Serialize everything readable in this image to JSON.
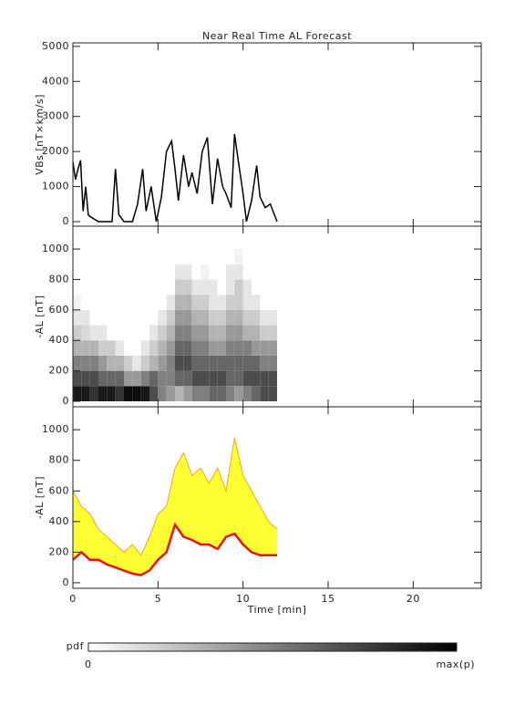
{
  "chart_data": [
    {
      "type": "line",
      "title": "Near Real Time AL Forecast",
      "ylabel": "VBs [nT×km/s]",
      "x": [
        0,
        0.15,
        0.3,
        0.45,
        0.6,
        0.75,
        0.9,
        1.0,
        1.5,
        2.0,
        2.3,
        2.5,
        2.7,
        3.0,
        3.5,
        3.8,
        4.1,
        4.3,
        4.6,
        4.9,
        5.2,
        5.5,
        5.8,
        6.0,
        6.2,
        6.5,
        6.8,
        7.0,
        7.3,
        7.6,
        7.9,
        8.2,
        8.5,
        8.8,
        9.0,
        9.3,
        9.5,
        9.7,
        10.0,
        10.2,
        10.5,
        10.8,
        11.0,
        11.3,
        11.6,
        12.0
      ],
      "values": [
        1700,
        1200,
        1500,
        1750,
        300,
        1000,
        200,
        150,
        0,
        0,
        0,
        1500,
        200,
        0,
        0,
        500,
        1500,
        300,
        1000,
        0,
        700,
        2000,
        2300,
        1500,
        600,
        1900,
        1000,
        1400,
        800,
        2000,
        2400,
        500,
        1800,
        1000,
        800,
        400,
        2500,
        1800,
        800,
        0,
        600,
        1600,
        700,
        400,
        500,
        0
      ],
      "color": "#000000",
      "xlim": [
        0,
        24
      ],
      "xticks": [
        0,
        5,
        10,
        15,
        20
      ],
      "xtick_labels": false,
      "ylim": [
        -130,
        5100
      ],
      "yticks": [
        0,
        1000,
        2000,
        3000,
        4000,
        5000
      ]
    },
    {
      "type": "heatmap",
      "ylabel": "-AL [nT]",
      "xbins": [
        0,
        0.5,
        1,
        1.5,
        2,
        2.5,
        3,
        3.5,
        4,
        4.5,
        5,
        5.5,
        6,
        6.5,
        7,
        7.5,
        8,
        8.5,
        9,
        9.5,
        10,
        10.5,
        11,
        11.5,
        12
      ],
      "ybins": [
        0,
        100,
        200,
        300,
        400,
        500,
        600,
        700,
        800,
        900,
        1000
      ],
      "z": [
        [
          0.9,
          0.7,
          0.5,
          0.3,
          0.2,
          0.1,
          0.05,
          0,
          0,
          0
        ],
        [
          0.9,
          0.7,
          0.5,
          0.3,
          0.15,
          0.1,
          0,
          0,
          0,
          0
        ],
        [
          0.8,
          0.7,
          0.5,
          0.3,
          0.1,
          0,
          0,
          0,
          0,
          0
        ],
        [
          0.9,
          0.6,
          0.4,
          0.2,
          0.1,
          0,
          0,
          0,
          0,
          0
        ],
        [
          0.9,
          0.6,
          0.3,
          0.2,
          0,
          0,
          0,
          0,
          0,
          0
        ],
        [
          0.8,
          0.6,
          0.3,
          0.1,
          0,
          0,
          0,
          0,
          0,
          0
        ],
        [
          0.95,
          0.4,
          0.2,
          0,
          0,
          0,
          0,
          0,
          0,
          0
        ],
        [
          0.95,
          0.4,
          0.1,
          0,
          0,
          0,
          0,
          0,
          0,
          0
        ],
        [
          0.9,
          0.5,
          0.2,
          0.1,
          0,
          0,
          0,
          0,
          0,
          0
        ],
        [
          0.7,
          0.6,
          0.3,
          0.2,
          0.1,
          0,
          0,
          0,
          0,
          0
        ],
        [
          0.5,
          0.5,
          0.4,
          0.3,
          0.2,
          0.1,
          0,
          0,
          0,
          0
        ],
        [
          0.4,
          0.5,
          0.5,
          0.4,
          0.3,
          0.2,
          0.1,
          0,
          0,
          0
        ],
        [
          0.3,
          0.6,
          0.7,
          0.6,
          0.5,
          0.4,
          0.3,
          0.2,
          0.1,
          0
        ],
        [
          0.4,
          0.6,
          0.7,
          0.6,
          0.5,
          0.4,
          0.3,
          0.2,
          0.1,
          0
        ],
        [
          0.5,
          0.7,
          0.6,
          0.5,
          0.4,
          0.3,
          0.2,
          0.1,
          0,
          0
        ],
        [
          0.5,
          0.7,
          0.6,
          0.5,
          0.4,
          0.3,
          0.2,
          0.1,
          0.05,
          0
        ],
        [
          0.6,
          0.7,
          0.6,
          0.4,
          0.3,
          0.2,
          0.1,
          0.1,
          0,
          0
        ],
        [
          0.6,
          0.7,
          0.6,
          0.4,
          0.3,
          0.2,
          0.1,
          0,
          0,
          0
        ],
        [
          0.5,
          0.6,
          0.6,
          0.5,
          0.4,
          0.3,
          0.2,
          0.1,
          0.1,
          0
        ],
        [
          0.4,
          0.6,
          0.6,
          0.5,
          0.4,
          0.3,
          0.2,
          0.2,
          0.1,
          0.05
        ],
        [
          0.5,
          0.7,
          0.6,
          0.5,
          0.3,
          0.2,
          0.1,
          0.1,
          0,
          0
        ],
        [
          0.6,
          0.7,
          0.6,
          0.4,
          0.3,
          0.2,
          0.1,
          0,
          0,
          0
        ],
        [
          0.7,
          0.7,
          0.5,
          0.4,
          0.2,
          0.1,
          0,
          0,
          0,
          0
        ],
        [
          0.7,
          0.7,
          0.5,
          0.4,
          0.2,
          0.1,
          0,
          0,
          0,
          0
        ]
      ],
      "xlim": [
        0,
        24
      ],
      "xticks": [
        0,
        5,
        10,
        15,
        20
      ],
      "xtick_labels": false,
      "ylim": [
        -36,
        1150
      ],
      "yticks": [
        0,
        200,
        400,
        600,
        800,
        1000
      ]
    },
    {
      "type": "band",
      "ylabel": "-AL [nT]",
      "xlabel": "Time [min]",
      "x": [
        0,
        0.5,
        1,
        1.5,
        2,
        2.5,
        3,
        3.5,
        4,
        4.5,
        5,
        5.5,
        6,
        6.5,
        7,
        7.5,
        8,
        8.5,
        9,
        9.5,
        10,
        10.5,
        11,
        11.5,
        12
      ],
      "series": [
        {
          "color": "#ee1111",
          "values": [
            150,
            200,
            150,
            150,
            120,
            100,
            80,
            60,
            50,
            80,
            150,
            200,
            380,
            300,
            280,
            250,
            250,
            220,
            300,
            320,
            250,
            200,
            180,
            180,
            180
          ]
        },
        {
          "color": "#f5a623",
          "values": [
            600,
            500,
            450,
            350,
            300,
            250,
            200,
            250,
            180,
            300,
            450,
            500,
            750,
            850,
            700,
            750,
            650,
            750,
            600,
            950,
            700,
            600,
            500,
            400,
            350
          ]
        }
      ],
      "fill": "#ffff33",
      "xlim": [
        0,
        24
      ],
      "xticks": [
        0,
        5,
        10,
        15,
        20
      ],
      "xtick_labels": true,
      "ylim": [
        -36,
        1150
      ],
      "yticks": [
        0,
        200,
        400,
        600,
        800,
        1000
      ]
    }
  ],
  "colorbar": {
    "label": "pdf",
    "min_label": "0",
    "max_label": "max(p)"
  }
}
